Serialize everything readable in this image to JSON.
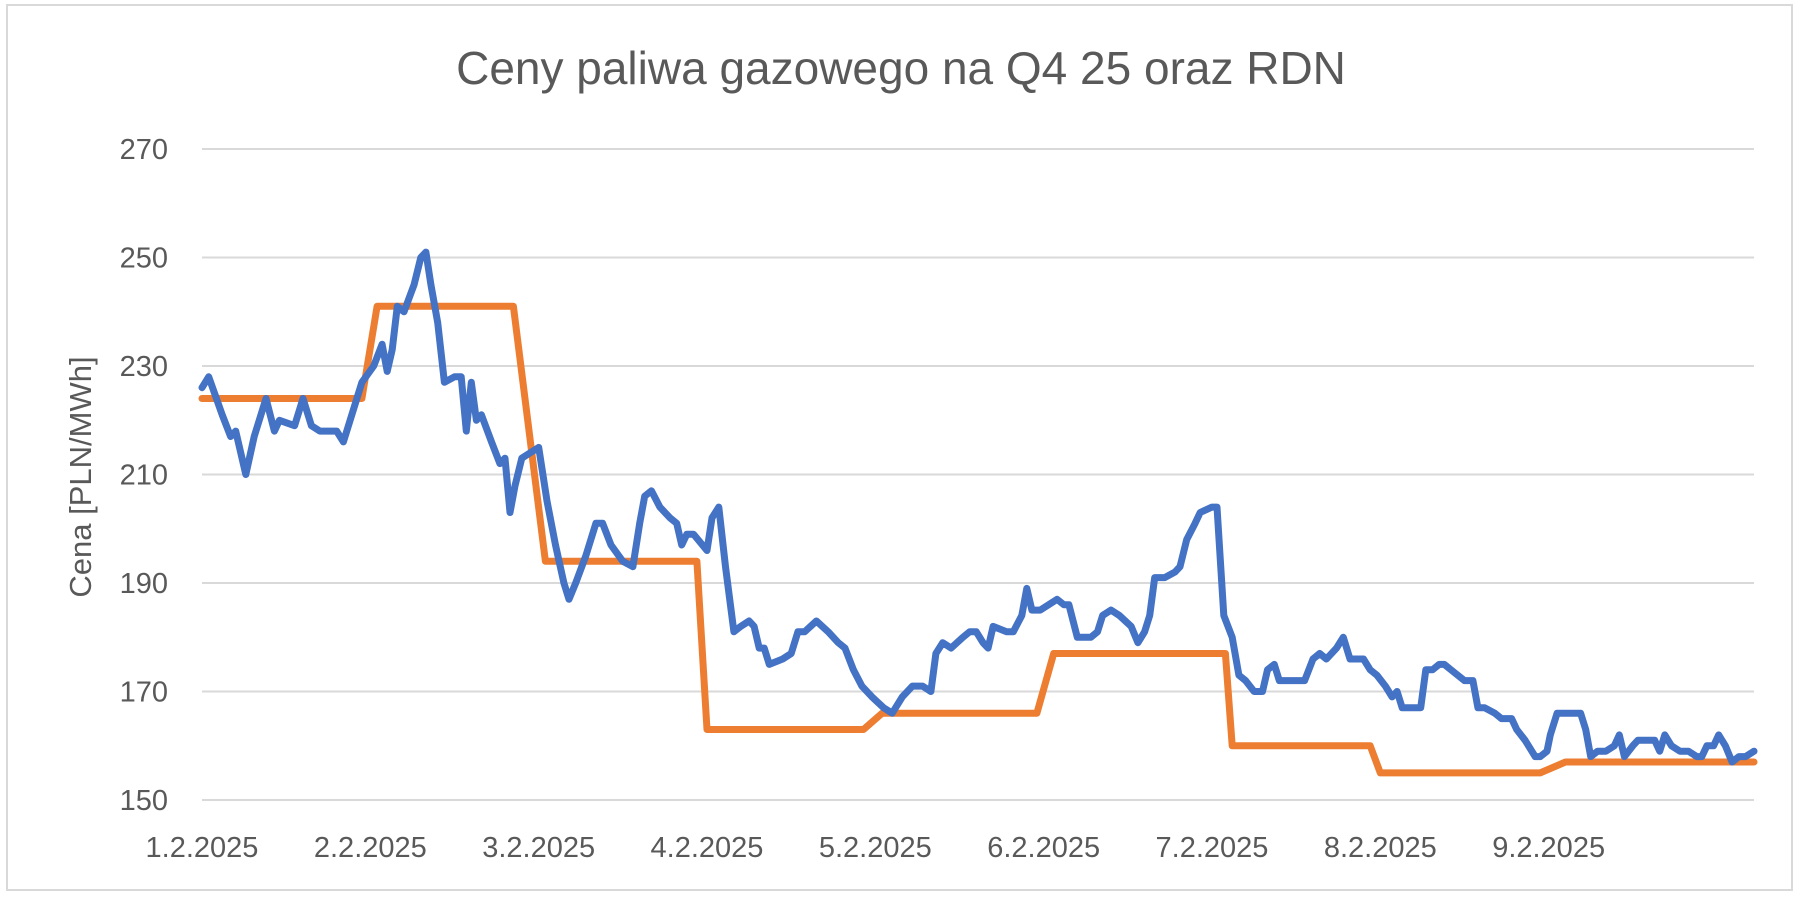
{
  "chart_data": {
    "type": "line",
    "title": "Ceny paliwa gazowego na Q4 25 oraz RDN",
    "xlabel": "",
    "ylabel": "Cena [PLN/MWh]",
    "ylim": [
      150,
      270
    ],
    "yticks": [
      "150",
      "170",
      "190",
      "210",
      "230",
      "250",
      "270"
    ],
    "xticks": [
      "1.2.2025",
      "2.2.2025",
      "3.2.2025",
      "4.2.2025",
      "5.2.2025",
      "6.2.2025",
      "7.2.2025",
      "8.2.2025",
      "9.2.2025"
    ],
    "grid": true,
    "legend": "none",
    "colors": {
      "series1": "#4472C4",
      "series2": "#ED7D31",
      "grid": "#d9d9d9",
      "text": "#595959"
    },
    "series": [
      {
        "values": [
          [
            1.0,
            226
          ],
          [
            1.04,
            228
          ],
          [
            1.12,
            221
          ],
          [
            1.17,
            217
          ],
          [
            1.2,
            218
          ],
          [
            1.26,
            210
          ],
          [
            1.31,
            217
          ],
          [
            1.38,
            224
          ],
          [
            1.43,
            218
          ],
          [
            1.46,
            220
          ],
          [
            1.55,
            219
          ],
          [
            1.6,
            224
          ],
          [
            1.65,
            219
          ],
          [
            1.7,
            218
          ],
          [
            1.8,
            218
          ],
          [
            1.84,
            216
          ],
          [
            1.88,
            220
          ],
          [
            1.95,
            227
          ],
          [
            2.02,
            230
          ],
          [
            2.07,
            234
          ],
          [
            2.1,
            229
          ],
          [
            2.13,
            233
          ],
          [
            2.16,
            241
          ],
          [
            2.2,
            240
          ],
          [
            2.26,
            245
          ],
          [
            2.3,
            250
          ],
          [
            2.33,
            251
          ],
          [
            2.36,
            245
          ],
          [
            2.4,
            238
          ],
          [
            2.44,
            227
          ],
          [
            2.5,
            228
          ],
          [
            2.54,
            228
          ],
          [
            2.57,
            218
          ],
          [
            2.6,
            227
          ],
          [
            2.63,
            220
          ],
          [
            2.66,
            221
          ],
          [
            2.72,
            216
          ],
          [
            2.77,
            212
          ],
          [
            2.8,
            213
          ],
          [
            2.83,
            203
          ],
          [
            2.86,
            208
          ],
          [
            2.9,
            213
          ],
          [
            2.95,
            214
          ],
          [
            3.0,
            215
          ],
          [
            3.05,
            205
          ],
          [
            3.1,
            197
          ],
          [
            3.15,
            190
          ],
          [
            3.18,
            187
          ],
          [
            3.22,
            190
          ],
          [
            3.28,
            195
          ],
          [
            3.34,
            201
          ],
          [
            3.38,
            201
          ],
          [
            3.43,
            197
          ],
          [
            3.5,
            194
          ],
          [
            3.56,
            193
          ],
          [
            3.6,
            201
          ],
          [
            3.63,
            206
          ],
          [
            3.67,
            207
          ],
          [
            3.72,
            204
          ],
          [
            3.78,
            202
          ],
          [
            3.82,
            201
          ],
          [
            3.85,
            197
          ],
          [
            3.88,
            199
          ],
          [
            3.92,
            199
          ],
          [
            4.0,
            196
          ],
          [
            4.03,
            202
          ],
          [
            4.07,
            204
          ],
          [
            4.11,
            193
          ],
          [
            4.16,
            181
          ],
          [
            4.2,
            182
          ],
          [
            4.25,
            183
          ],
          [
            4.28,
            182
          ],
          [
            4.31,
            178
          ],
          [
            4.34,
            178
          ],
          [
            4.37,
            175
          ],
          [
            4.45,
            176
          ],
          [
            4.5,
            177
          ],
          [
            4.54,
            181
          ],
          [
            4.58,
            181
          ],
          [
            4.65,
            183
          ],
          [
            4.72,
            181
          ],
          [
            4.78,
            179
          ],
          [
            4.82,
            178
          ],
          [
            4.87,
            174
          ],
          [
            4.92,
            171
          ],
          [
            4.98,
            169
          ],
          [
            5.05,
            167
          ],
          [
            5.1,
            166
          ],
          [
            5.16,
            169
          ],
          [
            5.22,
            171
          ],
          [
            5.28,
            171
          ],
          [
            5.33,
            170
          ],
          [
            5.36,
            177
          ],
          [
            5.4,
            179
          ],
          [
            5.45,
            178
          ],
          [
            5.52,
            180
          ],
          [
            5.56,
            181
          ],
          [
            5.6,
            181
          ],
          [
            5.64,
            179
          ],
          [
            5.67,
            178
          ],
          [
            5.7,
            182
          ],
          [
            5.78,
            181
          ],
          [
            5.82,
            181
          ],
          [
            5.87,
            184
          ],
          [
            5.9,
            189
          ],
          [
            5.93,
            185
          ],
          [
            5.98,
            185
          ],
          [
            6.03,
            186
          ],
          [
            6.08,
            187
          ],
          [
            6.12,
            186
          ],
          [
            6.15,
            186
          ],
          [
            6.2,
            180
          ],
          [
            6.28,
            180
          ],
          [
            6.32,
            181
          ],
          [
            6.35,
            184
          ],
          [
            6.4,
            185
          ],
          [
            6.45,
            184
          ],
          [
            6.52,
            182
          ],
          [
            6.56,
            179
          ],
          [
            6.6,
            181
          ],
          [
            6.63,
            184
          ],
          [
            6.66,
            191
          ],
          [
            6.72,
            191
          ],
          [
            6.78,
            192
          ],
          [
            6.81,
            193
          ],
          [
            6.85,
            198
          ],
          [
            6.9,
            201
          ],
          [
            6.93,
            203
          ],
          [
            7.0,
            204
          ],
          [
            7.03,
            204
          ],
          [
            7.07,
            184
          ],
          [
            7.12,
            180
          ],
          [
            7.16,
            173
          ],
          [
            7.2,
            172
          ],
          [
            7.25,
            170
          ],
          [
            7.3,
            170
          ],
          [
            7.33,
            174
          ],
          [
            7.37,
            175
          ],
          [
            7.4,
            172
          ],
          [
            7.45,
            172
          ],
          [
            7.5,
            172
          ],
          [
            7.55,
            172
          ],
          [
            7.6,
            176
          ],
          [
            7.64,
            177
          ],
          [
            7.68,
            176
          ],
          [
            7.74,
            178
          ],
          [
            7.78,
            180
          ],
          [
            7.82,
            176
          ],
          [
            7.86,
            176
          ],
          [
            7.9,
            176
          ],
          [
            7.94,
            174
          ],
          [
            7.98,
            173
          ],
          [
            8.03,
            171
          ],
          [
            8.07,
            169
          ],
          [
            8.1,
            170
          ],
          [
            8.13,
            167
          ],
          [
            8.17,
            167
          ],
          [
            8.24,
            167
          ],
          [
            8.27,
            174
          ],
          [
            8.31,
            174
          ],
          [
            8.35,
            175
          ],
          [
            8.38,
            175
          ],
          [
            8.42,
            174
          ],
          [
            8.46,
            173
          ],
          [
            8.5,
            172
          ],
          [
            8.55,
            172
          ],
          [
            8.58,
            167
          ],
          [
            8.62,
            167
          ],
          [
            8.68,
            166
          ],
          [
            8.72,
            165
          ],
          [
            8.78,
            165
          ],
          [
            8.81,
            163
          ],
          [
            8.86,
            161
          ],
          [
            8.92,
            158
          ],
          [
            8.95,
            158
          ],
          [
            8.99,
            159
          ],
          [
            9.01,
            162
          ],
          [
            9.05,
            166
          ],
          [
            9.1,
            166
          ],
          [
            9.16,
            166
          ],
          [
            9.19,
            166
          ],
          [
            9.22,
            163
          ],
          [
            9.25,
            158
          ],
          [
            9.29,
            159
          ],
          [
            9.34,
            159
          ],
          [
            9.39,
            160
          ],
          [
            9.42,
            162
          ],
          [
            9.45,
            158
          ],
          [
            9.5,
            160
          ],
          [
            9.53,
            161
          ],
          [
            9.58,
            161
          ],
          [
            9.63,
            161
          ],
          [
            9.66,
            159
          ],
          [
            9.69,
            162
          ],
          [
            9.73,
            160
          ],
          [
            9.78,
            159
          ],
          [
            9.83,
            159
          ],
          [
            9.88,
            158
          ],
          [
            9.91,
            158
          ],
          [
            9.94,
            160
          ],
          [
            9.98,
            160
          ],
          [
            10.01,
            162
          ],
          [
            10.05,
            160
          ],
          [
            10.09,
            157
          ],
          [
            10.13,
            158
          ],
          [
            10.17,
            158
          ],
          [
            10.22,
            159
          ]
        ]
      },
      {
        "values": [
          [
            1.0,
            224
          ],
          [
            1.95,
            224
          ],
          [
            2.04,
            241
          ],
          [
            2.85,
            241
          ],
          [
            3.04,
            194
          ],
          [
            3.94,
            194
          ],
          [
            4.0,
            163
          ],
          [
            4.93,
            163
          ],
          [
            5.04,
            166
          ],
          [
            5.96,
            166
          ],
          [
            6.06,
            177
          ],
          [
            7.08,
            177
          ],
          [
            7.12,
            160
          ],
          [
            7.94,
            160
          ],
          [
            8.0,
            155
          ],
          [
            8.95,
            155
          ],
          [
            9.1,
            157
          ],
          [
            10.22,
            157
          ]
        ]
      }
    ]
  }
}
